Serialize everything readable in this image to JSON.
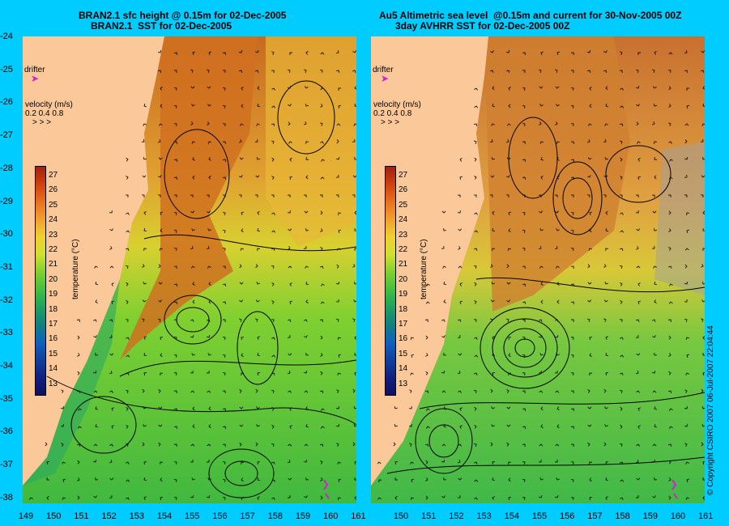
{
  "left_panel": {
    "title_line1": "BRAN2.1 sfc height @ 0.15m for 02-Dec-2005",
    "title_line2": "BRAN2.1  SST for 02-Dec-2005",
    "drifter_label": "drifter",
    "velocity_label": "velocity (m/s)",
    "velocity_scale": "0.2 0.4 0.8"
  },
  "right_panel": {
    "title_line1": "Au5 Altimetric sea level  @0.15m and current for 30-Nov-2005 00Z",
    "title_line2": "3day AVHRR SST for 02-Dec-2005 00Z",
    "drifter_label": "drifter",
    "velocity_label": "velocity (m/s)",
    "velocity_scale": "0.2 0.4 0.8"
  },
  "colorbar": {
    "label": "temperature (°C)",
    "ticks": [
      "27",
      "26",
      "25",
      "24",
      "23",
      "22",
      "21",
      "20",
      "19",
      "18",
      "17",
      "16",
      "15",
      "14",
      "13"
    ]
  },
  "y_axis_ticks": [
    "-24",
    "-25",
    "-26",
    "-27",
    "-28",
    "-29",
    "-30",
    "-31",
    "-32",
    "-33",
    "-34",
    "-35",
    "-36",
    "-37",
    "-38"
  ],
  "x_axis_left": [
    "149",
    "150",
    "151",
    "152",
    "153",
    "154",
    "155",
    "156",
    "157",
    "158",
    "159",
    "160",
    "161"
  ],
  "x_axis_right": [
    "150",
    "151",
    "152",
    "153",
    "154",
    "155",
    "156",
    "157",
    "158",
    "159",
    "160",
    "161"
  ],
  "copyright": "© Copyright CSIRO 2007 06-Jul-2007 22:04:44",
  "colors": {
    "background": "#00ccff",
    "land": "#fbc89a",
    "warm": "#c85a10",
    "mid": "#e0b030",
    "cool": "#50c030",
    "cold": "#28a060"
  }
}
